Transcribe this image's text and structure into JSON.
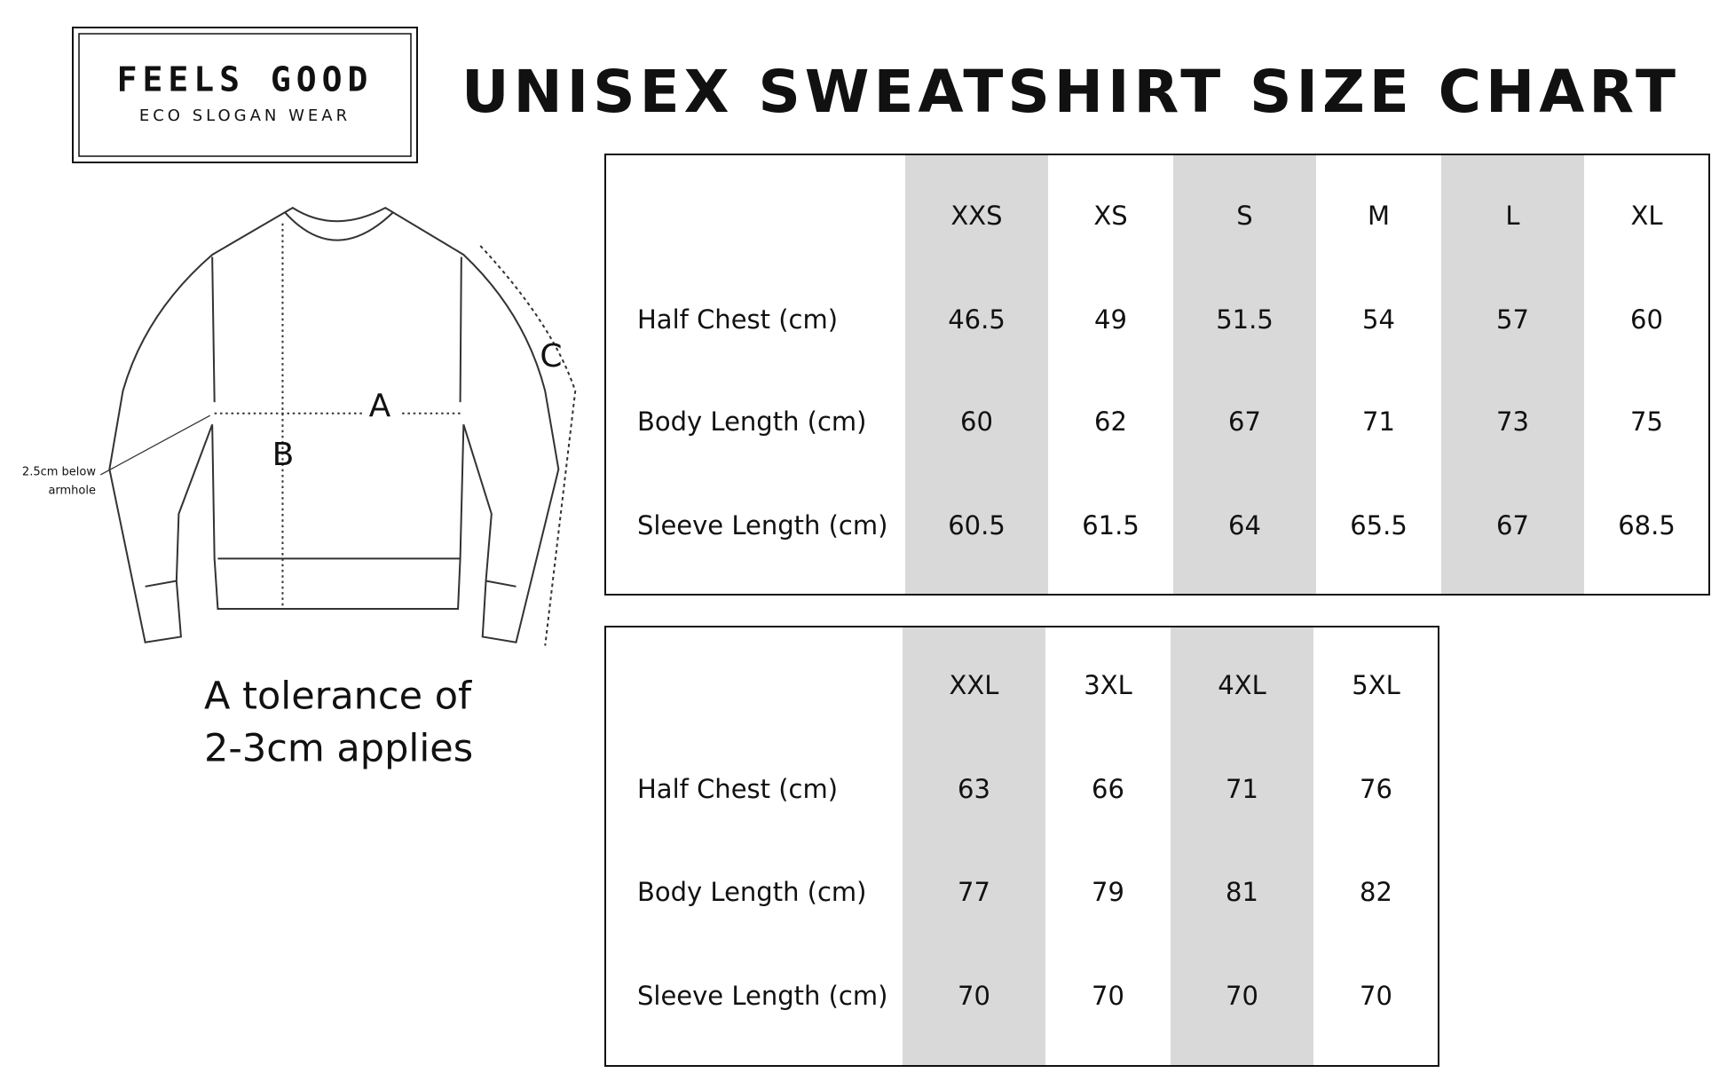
{
  "logo": {
    "title": "FEELS GOOD",
    "subtitle": "ECO SLOGAN WEAR"
  },
  "title": "UNISEX SWEATSHIRT SIZE CHART",
  "diagram": {
    "label_a": "A",
    "label_b": "B",
    "label_c": "C",
    "note": [
      "2.5cm below",
      "armhole"
    ]
  },
  "tolerance": [
    "A tolerance of",
    "2-3cm applies"
  ],
  "tables": [
    {
      "sizes": [
        "XXS",
        "XS",
        "S",
        "M",
        "L",
        "XL"
      ],
      "rows": [
        {
          "label": "Half Chest (cm)",
          "values": [
            46.5,
            49,
            51.5,
            54,
            57,
            60
          ]
        },
        {
          "label": "Body Length (cm)",
          "values": [
            60,
            62,
            67,
            71,
            73,
            75
          ]
        },
        {
          "label": "Sleeve Length (cm)",
          "values": [
            60.5,
            61.5,
            64,
            65.5,
            67,
            68.5
          ]
        }
      ]
    },
    {
      "sizes": [
        "XXL",
        "3XL",
        "4XL",
        "5XL"
      ],
      "rows": [
        {
          "label": "Half Chest (cm)",
          "values": [
            63,
            66,
            71,
            76
          ]
        },
        {
          "label": "Body Length (cm)",
          "values": [
            77,
            79,
            81,
            82
          ]
        },
        {
          "label": "Sleeve Length (cm)",
          "values": [
            70,
            70,
            70,
            70
          ]
        }
      ]
    }
  ]
}
